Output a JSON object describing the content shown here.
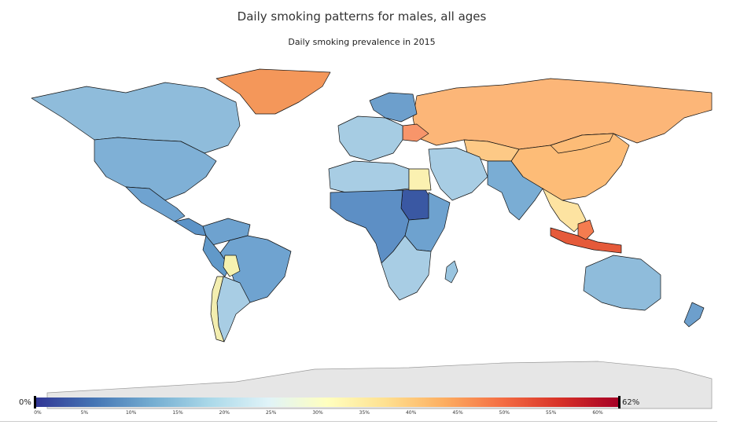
{
  "title": "Daily smoking patterns for males, all ages",
  "subtitle": "Daily smoking prevalence in 2015",
  "legend": {
    "min_label": "0%",
    "max_label": "62%",
    "ticks": [
      "0%",
      "5%",
      "10%",
      "15%",
      "20%",
      "25%",
      "30%",
      "35%",
      "40%",
      "45%",
      "50%",
      "55%",
      "60%"
    ],
    "colors": [
      "#313695",
      "#4575b4",
      "#74add1",
      "#abd9e9",
      "#e0f3f8",
      "#ffffbf",
      "#fee090",
      "#fdae61",
      "#f46d43",
      "#d73027",
      "#a50026"
    ]
  },
  "map_data": {
    "type": "choropleth",
    "countries": [
      {
        "name": "Greenland",
        "color": "#f4975a"
      },
      {
        "name": "Canada",
        "color": "#8fbcdb"
      },
      {
        "name": "United States",
        "color": "#7fb0d6"
      },
      {
        "name": "Mexico",
        "color": "#6fa3d0"
      },
      {
        "name": "Central America",
        "color": "#5c93c7"
      },
      {
        "name": "Colombia/Venezuela",
        "color": "#6ea2cf"
      },
      {
        "name": "Brazil",
        "color": "#6fa3d0"
      },
      {
        "name": "Peru",
        "color": "#6199c9"
      },
      {
        "name": "Bolivia",
        "color": "#f6f2b0"
      },
      {
        "name": "Argentina",
        "color": "#a8cde4"
      },
      {
        "name": "Chile",
        "color": "#f3eeb0"
      },
      {
        "name": "Russia",
        "color": "#fcb678"
      },
      {
        "name": "China",
        "color": "#fdbc77"
      },
      {
        "name": "Kazakhstan",
        "color": "#fdc986"
      },
      {
        "name": "Mongolia",
        "color": "#fdbc77"
      },
      {
        "name": "Ukraine",
        "color": "#f8956a"
      },
      {
        "name": "Europe West",
        "color": "#a6cce3"
      },
      {
        "name": "Scandinavia",
        "color": "#6d9fcc"
      },
      {
        "name": "Africa North",
        "color": "#a8cde4"
      },
      {
        "name": "Sudan",
        "color": "#3a58a3"
      },
      {
        "name": "Egypt",
        "color": "#fbf1b1"
      },
      {
        "name": "Africa Central",
        "color": "#5d8fc5"
      },
      {
        "name": "Africa East",
        "color": "#6ea2cf"
      },
      {
        "name": "Africa South",
        "color": "#a8cde4"
      },
      {
        "name": "Middle East",
        "color": "#a8cde4"
      },
      {
        "name": "India",
        "color": "#7aadd4"
      },
      {
        "name": "Southeast Asia",
        "color": "#fde3a1"
      },
      {
        "name": "Indonesia",
        "color": "#e55a3a"
      },
      {
        "name": "Philippines",
        "color": "#f57c4f"
      },
      {
        "name": "Australia",
        "color": "#8fbcdb"
      },
      {
        "name": "New Zealand",
        "color": "#6d9fcc"
      },
      {
        "name": "Madagascar",
        "color": "#9ac5e0"
      },
      {
        "name": "Antarctica",
        "color": "#e6e6e6"
      }
    ]
  }
}
